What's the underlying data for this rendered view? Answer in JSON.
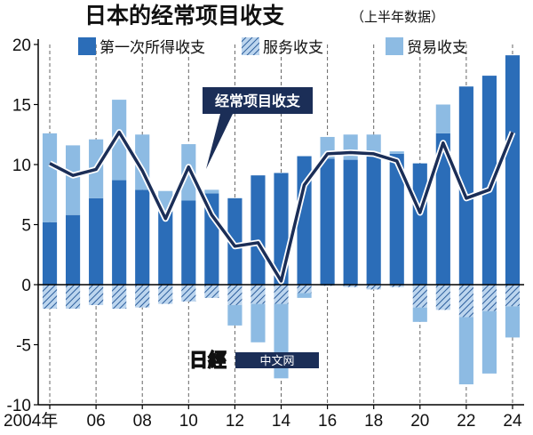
{
  "title": "日本的经常项目收支",
  "subtitle": "（上半年数据）",
  "watermark": {
    "logo_text": "日經",
    "label": "中文网"
  },
  "colors": {
    "primary": "#2b6db8",
    "trade": "#8dbbe3",
    "services_bg": "#bcd5ee",
    "services_stripe": "#2b5d9c",
    "line": "#1b2e57",
    "axis": "#000000",
    "grid": "#666666"
  },
  "chart_data": {
    "type": "bar",
    "title": "日本的经常项目收支",
    "subtitle": "（上半年数据）",
    "ylim": [
      -10,
      20
    ],
    "yticks": [
      -10,
      -5,
      0,
      5,
      10,
      15,
      20
    ],
    "xtick_labels": [
      {
        "year": 2004,
        "label": "2004年"
      },
      {
        "year": 2006,
        "label": "06"
      },
      {
        "year": 2008,
        "label": "08"
      },
      {
        "year": 2010,
        "label": "10"
      },
      {
        "year": 2012,
        "label": "12"
      },
      {
        "year": 2014,
        "label": "14"
      },
      {
        "year": 2016,
        "label": "16"
      },
      {
        "year": 2018,
        "label": "18"
      },
      {
        "year": 2020,
        "label": "20"
      },
      {
        "year": 2022,
        "label": "22"
      },
      {
        "year": 2024,
        "label": "24"
      }
    ],
    "grid": "vertical dashed at labeled ticks",
    "legend_position": "top",
    "x": [
      2004,
      2005,
      2006,
      2007,
      2008,
      2009,
      2010,
      2011,
      2012,
      2013,
      2014,
      2015,
      2016,
      2017,
      2018,
      2019,
      2020,
      2021,
      2022,
      2023,
      2024
    ],
    "series": [
      {
        "name": "第一次所得收支",
        "kind": "bar",
        "values": [
          5.2,
          5.8,
          7.2,
          8.7,
          7.9,
          6.1,
          7.0,
          7.6,
          7.2,
          9.1,
          9.3,
          10.7,
          10.5,
          10.4,
          10.9,
          10.9,
          10.1,
          12.6,
          16.5,
          17.4,
          19.1
        ]
      },
      {
        "name": "服务收支",
        "kind": "hatched",
        "values": [
          -2.0,
          -2.0,
          -1.7,
          -2.0,
          -1.9,
          -1.6,
          -1.4,
          -1.1,
          -1.7,
          -1.6,
          -1.6,
          -0.7,
          -0.1,
          -0.2,
          -0.4,
          -0.2,
          -1.9,
          -2.1,
          -2.7,
          -2.2,
          -1.8
        ]
      },
      {
        "name": "贸易收支",
        "kind": "stacked-light",
        "values": [
          7.4,
          5.8,
          4.9,
          6.7,
          4.6,
          1.7,
          4.7,
          0.3,
          -1.7,
          -3.2,
          -6.2,
          -0.4,
          1.8,
          2.1,
          1.6,
          0.2,
          -1.2,
          2.4,
          -5.6,
          -5.2,
          -2.6
        ]
      },
      {
        "name": "经常项目收支",
        "kind": "line",
        "values": [
          10.1,
          9.1,
          9.6,
          12.7,
          9.5,
          5.5,
          9.8,
          5.8,
          3.2,
          3.5,
          0.3,
          8.3,
          10.9,
          11.0,
          10.9,
          10.3,
          6.0,
          11.8,
          7.2,
          7.9,
          12.7
        ]
      }
    ]
  }
}
